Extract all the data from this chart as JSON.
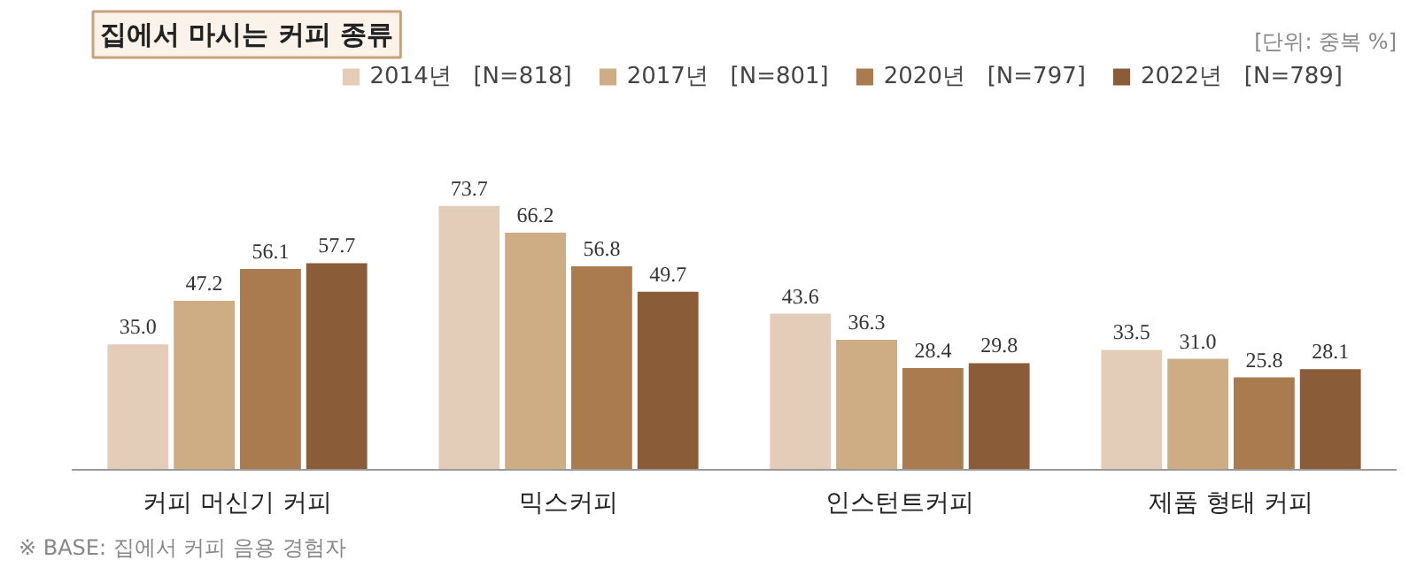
{
  "chart_data": {
    "type": "bar",
    "title": "집에서 마시는 커피 종류",
    "annotations": [
      "[단위: 중복 %]",
      "※ BASE: 집에서 커피 음용 경험자"
    ],
    "categories": [
      "커피 머신기 커피",
      "믹스커피",
      "인스턴트커피",
      "제품 형태 커피"
    ],
    "series": [
      {
        "name": "2014년   [N=818]",
        "color": "#e3cdb9",
        "values": [
          35.0,
          73.7,
          43.6,
          33.5
        ],
        "value_labels": [
          "35.0",
          "73.7",
          "43.6",
          "33.5"
        ]
      },
      {
        "name": "2017년   [N=801]",
        "color": "#cfad84",
        "values": [
          47.2,
          66.2,
          36.3,
          31.0
        ],
        "value_labels": [
          "47.2",
          "66.2",
          "36.3",
          "31.0"
        ]
      },
      {
        "name": "2020년   [N=797]",
        "color": "#a97b4e",
        "values": [
          56.1,
          56.8,
          28.4,
          25.8
        ],
        "value_labels": [
          "56.1",
          "56.8",
          "28.4",
          "25.8"
        ]
      },
      {
        "name": "2022년   [N=789]",
        "color": "#8a5c38",
        "values": [
          57.7,
          49.7,
          29.8,
          28.1
        ],
        "value_labels": [
          "57.7",
          "49.7",
          "29.8",
          "28.1"
        ]
      }
    ],
    "legend": "top right"
  }
}
